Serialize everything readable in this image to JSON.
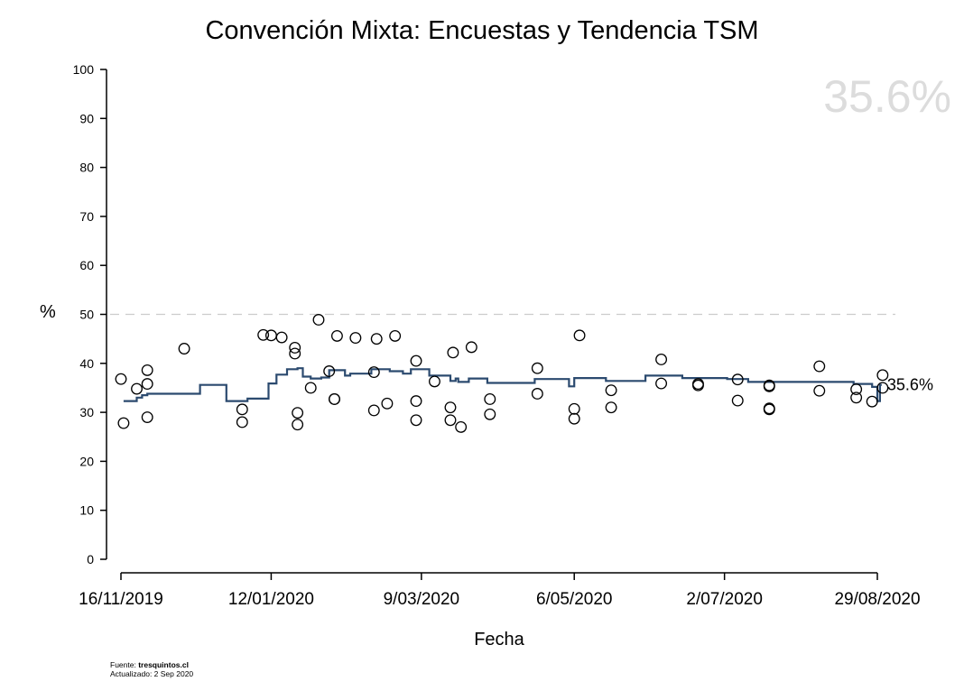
{
  "title": "Convención Mixta: Encuestas y Tendencia TSM",
  "big_value": "35.6%",
  "ylabel": "%",
  "xlabel": "Fecha",
  "source_label": "Fuente:",
  "source_site": "tresquintos.cl",
  "updated": "Actualizado: 2 Sep 2020",
  "end_label": "35.6%",
  "colors": {
    "trend": "#2b4a6f",
    "points": "#000000",
    "reference": "#cccccc",
    "big_value": "#dcdcdc"
  },
  "chart_data": {
    "type": "line",
    "title": "Convención Mixta: Encuestas y Tendencia TSM",
    "xlabel": "Fecha",
    "ylabel": "%",
    "ylim": [
      0,
      100
    ],
    "yticks": [
      0,
      10,
      20,
      30,
      40,
      50,
      60,
      70,
      80,
      90,
      100
    ],
    "xlim": [
      "2019-11-16",
      "2020-08-29"
    ],
    "xticks": [
      "16/11/2019",
      "12/01/2020",
      "9/03/2020",
      "6/05/2020",
      "2/07/2020",
      "29/08/2020"
    ],
    "reference_line": 50,
    "grid": false,
    "end_label": "35.6%",
    "series": [
      {
        "type": "step",
        "points": [
          [
            "2019-11-17",
            32.3
          ],
          [
            "2019-11-22",
            33.0
          ],
          [
            "2019-11-24",
            33.5
          ],
          [
            "2019-11-26",
            33.8
          ],
          [
            "2019-12-16",
            35.6
          ],
          [
            "2019-12-26",
            32.3
          ],
          [
            "2020-01-03",
            32.8
          ],
          [
            "2020-01-11",
            35.9
          ],
          [
            "2020-01-14",
            37.7
          ],
          [
            "2020-01-18",
            38.8
          ],
          [
            "2020-01-22",
            39.0
          ],
          [
            "2020-01-24",
            37.3
          ],
          [
            "2020-01-27",
            36.9
          ],
          [
            "2020-01-31",
            37.1
          ],
          [
            "2020-02-03",
            38.6
          ],
          [
            "2020-02-09",
            37.5
          ],
          [
            "2020-02-11",
            37.9
          ],
          [
            "2020-02-19",
            38.8
          ],
          [
            "2020-02-26",
            38.4
          ],
          [
            "2020-03-02",
            37.9
          ],
          [
            "2020-03-05",
            38.8
          ],
          [
            "2020-03-12",
            37.5
          ],
          [
            "2020-03-19",
            37.5
          ],
          [
            "2020-03-20",
            36.4
          ],
          [
            "2020-03-22",
            36.9
          ],
          [
            "2020-03-23",
            36.2
          ],
          [
            "2020-03-27",
            36.9
          ],
          [
            "2020-04-03",
            36.0
          ],
          [
            "2020-04-21",
            36.8
          ],
          [
            "2020-05-04",
            35.3
          ],
          [
            "2020-05-06",
            37.0
          ],
          [
            "2020-05-18",
            36.4
          ],
          [
            "2020-06-02",
            37.5
          ],
          [
            "2020-06-16",
            37.0
          ],
          [
            "2020-07-03",
            36.8
          ],
          [
            "2020-07-11",
            36.2
          ],
          [
            "2020-08-20",
            35.8
          ],
          [
            "2020-08-27",
            35.2
          ],
          [
            "2020-08-29",
            32.3
          ],
          [
            "2020-08-30",
            35.6
          ]
        ]
      },
      {
        "type": "scatter",
        "points": [
          [
            "2019-11-16",
            36.8
          ],
          [
            "2019-11-17",
            27.8
          ],
          [
            "2019-11-22",
            34.8
          ],
          [
            "2019-11-26",
            38.6
          ],
          [
            "2019-11-26",
            35.8
          ],
          [
            "2019-11-26",
            29.0
          ],
          [
            "2019-12-10",
            43.0
          ],
          [
            "2020-01-01",
            30.6
          ],
          [
            "2020-01-01",
            28.0
          ],
          [
            "2020-01-09",
            45.8
          ],
          [
            "2020-01-12",
            45.7
          ],
          [
            "2020-01-16",
            45.3
          ],
          [
            "2020-01-21",
            43.2
          ],
          [
            "2020-01-21",
            42.0
          ],
          [
            "2020-01-22",
            29.9
          ],
          [
            "2020-01-22",
            27.5
          ],
          [
            "2020-01-27",
            35.0
          ],
          [
            "2020-01-30",
            48.9
          ],
          [
            "2020-02-03",
            38.4
          ],
          [
            "2020-02-05",
            32.7
          ],
          [
            "2020-02-05",
            32.7
          ],
          [
            "2020-02-06",
            45.6
          ],
          [
            "2020-02-13",
            45.2
          ],
          [
            "2020-02-20",
            38.2
          ],
          [
            "2020-02-20",
            30.4
          ],
          [
            "2020-02-21",
            45.0
          ],
          [
            "2020-02-25",
            31.8
          ],
          [
            "2020-02-28",
            45.6
          ],
          [
            "2020-03-07",
            40.5
          ],
          [
            "2020-03-07",
            32.3
          ],
          [
            "2020-03-07",
            28.4
          ],
          [
            "2020-03-14",
            36.3
          ],
          [
            "2020-03-20",
            31.0
          ],
          [
            "2020-03-20",
            28.4
          ],
          [
            "2020-03-21",
            42.2
          ],
          [
            "2020-03-24",
            27.0
          ],
          [
            "2020-03-28",
            43.3
          ],
          [
            "2020-04-04",
            32.7
          ],
          [
            "2020-04-04",
            29.6
          ],
          [
            "2020-04-22",
            39.0
          ],
          [
            "2020-04-22",
            33.8
          ],
          [
            "2020-05-06",
            30.7
          ],
          [
            "2020-05-06",
            28.7
          ],
          [
            "2020-05-08",
            45.7
          ],
          [
            "2020-05-20",
            34.5
          ],
          [
            "2020-05-20",
            31.0
          ],
          [
            "2020-06-08",
            40.8
          ],
          [
            "2020-06-08",
            35.9
          ],
          [
            "2020-06-22",
            35.8
          ],
          [
            "2020-06-22",
            35.5
          ],
          [
            "2020-07-07",
            36.7
          ],
          [
            "2020-07-07",
            32.4
          ],
          [
            "2020-07-19",
            35.5
          ],
          [
            "2020-07-19",
            35.3
          ],
          [
            "2020-07-19",
            30.8
          ],
          [
            "2020-07-19",
            30.6
          ],
          [
            "2020-08-07",
            39.4
          ],
          [
            "2020-08-07",
            34.4
          ],
          [
            "2020-08-21",
            34.7
          ],
          [
            "2020-08-21",
            33.0
          ],
          [
            "2020-08-27",
            32.2
          ],
          [
            "2020-08-31",
            37.6
          ],
          [
            "2020-08-31",
            35.0
          ]
        ]
      }
    ]
  }
}
